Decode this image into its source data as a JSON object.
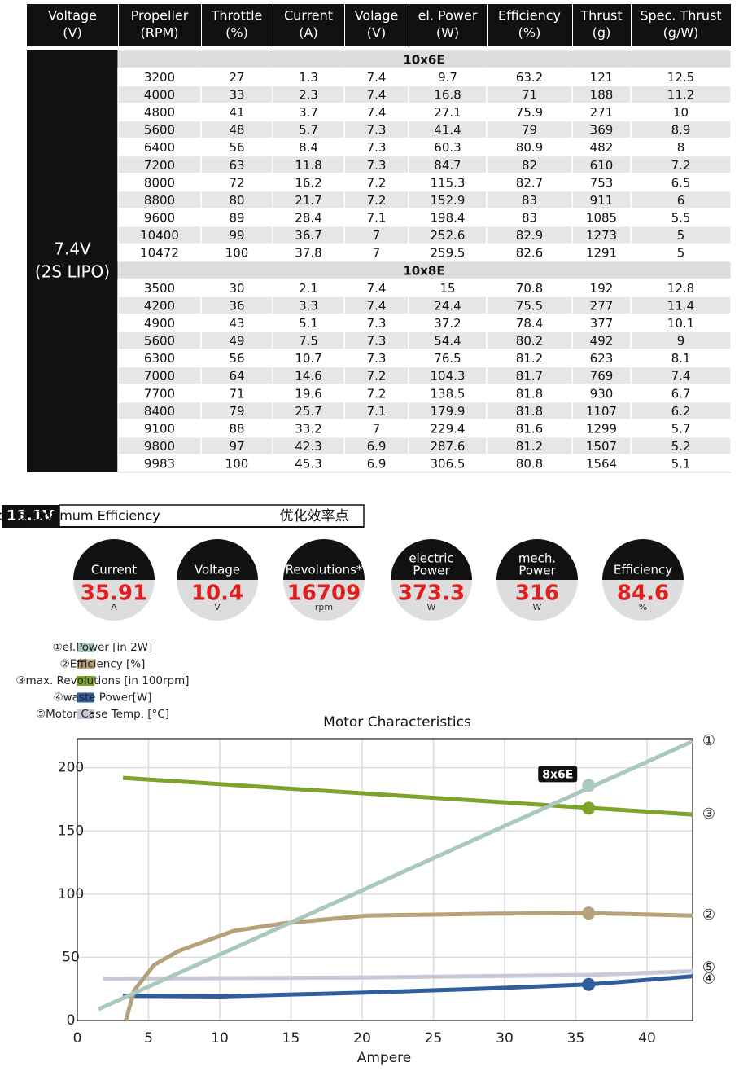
{
  "table": {
    "headers": [
      [
        "Voltage",
        "(V)"
      ],
      [
        "Propeller",
        "(RPM)"
      ],
      [
        "Throttle",
        "(%)"
      ],
      [
        "Current",
        "(A)"
      ],
      [
        "Volage",
        "(V)"
      ],
      [
        "el. Power",
        "(W)"
      ],
      [
        "Efficiency",
        "(%)"
      ],
      [
        "Thrust",
        "(g)"
      ],
      [
        "Spec. Thrust",
        "(g/W)"
      ]
    ],
    "voltage_label": [
      "7.4V",
      "(2S LIPO)"
    ],
    "groups": [
      {
        "name": "10x6E",
        "rows": [
          [
            3200,
            27,
            1.3,
            7.4,
            9.7,
            63.2,
            121,
            12.5
          ],
          [
            4000,
            33,
            2.3,
            7.4,
            16.8,
            71,
            188,
            11.2
          ],
          [
            4800,
            41,
            3.7,
            7.4,
            27.1,
            75.9,
            271,
            10
          ],
          [
            5600,
            48,
            5.7,
            7.3,
            41.4,
            79,
            369,
            8.9
          ],
          [
            6400,
            56,
            8.4,
            7.3,
            60.3,
            80.9,
            482,
            8
          ],
          [
            7200,
            63,
            11.8,
            7.3,
            84.7,
            82,
            610,
            7.2
          ],
          [
            8000,
            72,
            16.2,
            7.2,
            115.3,
            82.7,
            753,
            6.5
          ],
          [
            8800,
            80,
            21.7,
            7.2,
            152.9,
            83,
            911,
            6
          ],
          [
            9600,
            89,
            28.4,
            7.1,
            198.4,
            83,
            1085,
            5.5
          ],
          [
            10400,
            99,
            36.7,
            7,
            252.6,
            82.9,
            1273,
            5
          ],
          [
            10472,
            100,
            37.8,
            7,
            259.5,
            82.6,
            1291,
            5
          ]
        ]
      },
      {
        "name": "10x8E",
        "rows": [
          [
            3500,
            30,
            2.1,
            7.4,
            15,
            70.8,
            192,
            12.8
          ],
          [
            4200,
            36,
            3.3,
            7.4,
            24.4,
            75.5,
            277,
            11.4
          ],
          [
            4900,
            43,
            5.1,
            7.3,
            37.2,
            78.4,
            377,
            10.1
          ],
          [
            5600,
            49,
            7.5,
            7.3,
            54.4,
            80.2,
            492,
            9
          ],
          [
            6300,
            56,
            10.7,
            7.3,
            76.5,
            81.2,
            623,
            8.1
          ],
          [
            7000,
            64,
            14.6,
            7.2,
            104.3,
            81.7,
            769,
            7.4
          ],
          [
            7700,
            71,
            19.6,
            7.2,
            138.5,
            81.8,
            930,
            6.7
          ],
          [
            8400,
            79,
            25.7,
            7.1,
            179.9,
            81.8,
            1107,
            6.2
          ],
          [
            9100,
            88,
            33.2,
            7,
            229.4,
            81.6,
            1299,
            5.7
          ],
          [
            9800,
            97,
            42.3,
            6.9,
            287.6,
            81.2,
            1507,
            5.2
          ],
          [
            9983,
            100,
            45.3,
            6.9,
            306.5,
            80.8,
            1564,
            5.1
          ]
        ]
      }
    ]
  },
  "optimum": {
    "voltage": "11.1V",
    "title": "Motor @ Optimum Efficiency",
    "title_cn": "优化效率点",
    "items": [
      {
        "label": [
          "Current"
        ],
        "value": 35.91,
        "unit": "A"
      },
      {
        "label": [
          "Voltage"
        ],
        "value": 10.4,
        "unit": "V"
      },
      {
        "label": [
          "Revolutions*"
        ],
        "value": 16709,
        "unit": "rpm"
      },
      {
        "label": [
          "electric",
          "Power"
        ],
        "value": 373.3,
        "unit": "W"
      },
      {
        "label": [
          "mech.",
          "Power"
        ],
        "value": 316,
        "unit": "W"
      },
      {
        "label": [
          "Efficiency"
        ],
        "value": 84.6,
        "unit": "%"
      }
    ]
  },
  "chart_data": {
    "type": "line",
    "title": "Motor Characteristics",
    "x_label": "Ampere",
    "annotation": "8x6E",
    "xlim": [
      0,
      43.2
    ],
    "xticks": [
      0,
      5,
      10,
      15,
      20,
      25,
      30,
      35,
      40
    ],
    "ylim": [
      0,
      223
    ],
    "yticks": [
      0,
      50,
      100,
      150,
      200
    ],
    "grid": true,
    "series": [
      {
        "name": "①el.Power [in 2W]",
        "end_label": "①",
        "color": "#a9c8c0",
        "x": [
          1.5,
          43.2
        ],
        "values": [
          9,
          221
        ],
        "marker": {
          "x": 35.9,
          "value": 186
        }
      },
      {
        "name": "②Efficiency [%]",
        "end_label": "②",
        "color": "#b5a27a",
        "x": [
          3.4,
          4,
          5.4,
          7.1,
          8.8,
          11,
          14.6,
          20.3,
          28.9,
          35.9,
          43.2
        ],
        "values": [
          0,
          24,
          44,
          55,
          62,
          71,
          77,
          83,
          84.5,
          85,
          83
        ],
        "marker": {
          "x": 35.9,
          "value": 85
        }
      },
      {
        "name": "③max. Revolutions [in 100rpm]",
        "end_label": "③",
        "color": "#7ea32a",
        "x": [
          3.2,
          43.2
        ],
        "values": [
          192,
          163
        ],
        "marker": {
          "x": 35.9,
          "value": 168
        }
      },
      {
        "name": "④waste Power[W]",
        "end_label": "④",
        "color": "#2f5e9e",
        "x": [
          3.2,
          10,
          20,
          28,
          35.9,
          43.2
        ],
        "values": [
          19.5,
          19,
          22,
          25,
          28.5,
          35
        ],
        "marker": {
          "x": 35.9,
          "value": 28.5
        }
      },
      {
        "name": "⑤Motor Case Temp. [°C]",
        "end_label": "⑤",
        "color": "#c8c8d8",
        "x": [
          1.8,
          20,
          35.9,
          43.2
        ],
        "values": [
          33,
          34,
          36,
          39
        ]
      }
    ]
  }
}
